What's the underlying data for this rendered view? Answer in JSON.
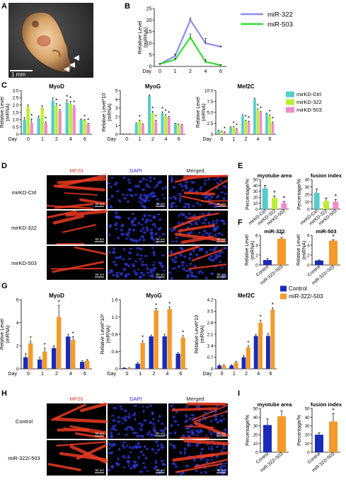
{
  "panel_letters": [
    "A",
    "B",
    "C",
    "D",
    "E",
    "F",
    "G",
    "H",
    "I"
  ],
  "embryo": {
    "scale_label": "1 mm"
  },
  "micro_top": {
    "columns": [
      "MF20",
      "DAPI",
      "Merged"
    ],
    "rows": [
      "mirKD-Ctrl",
      "mirKD-322",
      "mirKD-503"
    ],
    "scale_label": "50 um"
  },
  "micro_bottom": {
    "columns": [
      "MF20",
      "DAPI",
      "Merged"
    ],
    "rows": [
      "Control",
      "miR-322/-503"
    ],
    "scale_label": "50 um"
  },
  "colors": {
    "mir322_line": "#8c8cf0",
    "mir503_line": "#33dd33",
    "ctrl": "#55cccc",
    "kd322": "#bbee33",
    "kd503": "#f08cc8",
    "control": "#1a2bb8",
    "mir_over": "#f39a2a",
    "mf20": "#e23a28",
    "dapi": "#2b2bdd"
  },
  "legend_C": [
    "mirKD-Ctrl",
    "mirKD-322",
    "mirKD-503"
  ],
  "legend_G": [
    "Control",
    "miR-322/-503"
  ],
  "chart_data": [
    {
      "id": "B",
      "type": "line",
      "x": [
        0,
        1,
        2,
        4,
        6
      ],
      "xlabel": "Day",
      "ylabel": "Relative Level\n(miRNA)",
      "ylim": [
        0,
        25
      ],
      "yticks": [
        0,
        5,
        10,
        15,
        20,
        25
      ],
      "series": [
        {
          "name": "miR-322",
          "values": [
            1.0,
            4.5,
            20.0,
            10.0,
            8.5
          ],
          "err": [
            0.3,
            0.8,
            0.8,
            2.0,
            0.3
          ]
        },
        {
          "name": "miR-503",
          "values": [
            1.0,
            3.0,
            12.5,
            2.0,
            0.5
          ],
          "err": [
            0.2,
            0.5,
            1.5,
            1.0,
            0.2
          ]
        }
      ]
    },
    {
      "id": "C1",
      "type": "bar",
      "title": "MyoD",
      "categories": [
        "0",
        "1",
        "2",
        "4",
        "6"
      ],
      "xlabel": "Day",
      "ylabel": "Relative Level\n(mRNA)",
      "ylim": [
        0,
        3.0
      ],
      "yticks": [
        "0",
        "0.5",
        "1.0",
        "1.5",
        "2.0",
        "2.5",
        "3.0"
      ],
      "series": [
        {
          "name": "mirKD-Ctrl",
          "values": [
            1.0,
            1.1,
            2.3,
            2.2,
            1.0
          ],
          "err": [
            0.15,
            0.15,
            0.2,
            0.15,
            0.05
          ]
        },
        {
          "name": "mirKD-322",
          "values": [
            1.85,
            1.8,
            1.95,
            2.1,
            0.95
          ],
          "err": [
            0.15,
            0.15,
            0.15,
            0.15,
            0.05
          ]
        },
        {
          "name": "mirKD-503",
          "values": [
            0.8,
            0.75,
            1.6,
            1.85,
            0.7
          ],
          "err": [
            0.25,
            0.1,
            0.1,
            0.1,
            0.05
          ]
        }
      ],
      "stars": [
        {
          "cat": 0,
          "bar": 2
        },
        {
          "cat": 1,
          "bar": 2
        },
        {
          "cat": 2,
          "bar": 1
        },
        {
          "cat": 2,
          "bar": 2
        },
        {
          "cat": 3,
          "bar": 0
        },
        {
          "cat": 3,
          "bar": 1
        },
        {
          "cat": 3,
          "bar": 2
        },
        {
          "cat": 4,
          "bar": 1
        },
        {
          "cat": 4,
          "bar": 2
        }
      ]
    },
    {
      "id": "C2",
      "type": "bar",
      "title": "MyoG",
      "categories": [
        "0",
        "1",
        "2",
        "4",
        "6"
      ],
      "xlabel": "Day",
      "ylabel": "Relative Level*10\n(mRNA)",
      "ylim": [
        0,
        5
      ],
      "yticks": [
        "0",
        "1",
        "2",
        "3",
        "4",
        "5"
      ],
      "series": [
        {
          "name": "mirKD-Ctrl",
          "values": [
            0.05,
            1.2,
            4.4,
            2.4,
            1.2
          ],
          "err": [
            0.02,
            0.1,
            0.1,
            0.15,
            0.05
          ]
        },
        {
          "name": "mirKD-322",
          "values": [
            0.05,
            1.5,
            2.4,
            2.1,
            1.1
          ],
          "err": [
            0.02,
            0.1,
            0.2,
            0.15,
            0.05
          ]
        },
        {
          "name": "mirKD-503",
          "values": [
            0.05,
            1.1,
            1.5,
            1.95,
            1.05
          ],
          "err": [
            0.02,
            0.1,
            0.1,
            0.1,
            0.05
          ]
        }
      ],
      "stars": [
        {
          "cat": 1,
          "bar": 1
        },
        {
          "cat": 2,
          "bar": 1
        },
        {
          "cat": 2,
          "bar": 2
        },
        {
          "cat": 3,
          "bar": 0
        },
        {
          "cat": 3,
          "bar": 1
        },
        {
          "cat": 3,
          "bar": 2
        }
      ]
    },
    {
      "id": "C3",
      "type": "bar",
      "title": "Mef2C",
      "categories": [
        "0",
        "1",
        "2",
        "4",
        "6"
      ],
      "xlabel": "Day",
      "ylabel": "Relative Level\n(mRNA)",
      "ylim": [
        0,
        10
      ],
      "yticks": [
        "0",
        "2.5",
        "5.0",
        "7.5",
        "10.0"
      ],
      "series": [
        {
          "name": "mirKD-Ctrl",
          "values": [
            0.8,
            1.5,
            4.2,
            8.0,
            4.7
          ],
          "err": [
            0.1,
            0.2,
            0.2,
            0.2,
            0.1
          ]
        },
        {
          "name": "mirKD-322",
          "values": [
            0.6,
            1.6,
            3.0,
            5.5,
            4.2
          ],
          "err": [
            0.1,
            0.2,
            0.2,
            0.3,
            0.2
          ]
        },
        {
          "name": "mirKD-503",
          "values": [
            0.5,
            1.2,
            2.8,
            5.0,
            2.6
          ],
          "err": [
            0.1,
            0.1,
            0.2,
            0.2,
            0.2
          ]
        }
      ],
      "stars": [
        {
          "cat": 0,
          "bar": 2
        },
        {
          "cat": 1,
          "bar": 1
        },
        {
          "cat": 1,
          "bar": 2
        },
        {
          "cat": 2,
          "bar": 1
        },
        {
          "cat": 2,
          "bar": 2
        },
        {
          "cat": 3,
          "bar": 1
        },
        {
          "cat": 3,
          "bar": 2
        },
        {
          "cat": 4,
          "bar": 1
        },
        {
          "cat": 4,
          "bar": 2
        }
      ]
    },
    {
      "id": "E1",
      "type": "bar",
      "title": "myotube area",
      "categories": [
        "mirKD-Ctrl",
        "mirKD-322",
        "mirKD-503"
      ],
      "ylabel": "Percentage/%",
      "ylim": [
        0,
        50
      ],
      "yticks": [
        "0",
        "10",
        "20",
        "30",
        "40",
        "50"
      ],
      "values": [
        35,
        19,
        10
      ],
      "err": [
        5,
        3,
        3
      ],
      "stars": [
        1,
        2
      ]
    },
    {
      "id": "E2",
      "type": "bar",
      "title": "fusion index",
      "categories": [
        "mirKD-Ctrl",
        "mirKD-322",
        "mirKD-503"
      ],
      "ylabel": "Percentage/%",
      "ylim": [
        0,
        40
      ],
      "yticks": [
        "0",
        "10",
        "20",
        "30",
        "40"
      ],
      "values": [
        22,
        11,
        10
      ],
      "err": [
        5,
        4,
        3
      ],
      "stars": [
        2
      ]
    },
    {
      "id": "F1",
      "type": "bar",
      "title": "miR-322",
      "categories": [
        "Control",
        "miR-322/-503"
      ],
      "ylabel": "Relative Level\n(miRNA)",
      "ylim": [
        0,
        6
      ],
      "yticks": [
        "0",
        "2",
        "4",
        "6"
      ],
      "values": [
        1.0,
        5.3
      ],
      "err": [
        0.3,
        0.2
      ],
      "stars": [
        1
      ]
    },
    {
      "id": "F2",
      "type": "bar",
      "title": "miR-503",
      "categories": [
        "Control",
        "miR-322/-503"
      ],
      "ylabel": "Relative Level\n(miRNA)",
      "ylim": [
        0,
        6
      ],
      "yticks": [
        "0",
        "2",
        "4",
        "6"
      ],
      "values": [
        0.9,
        4.9
      ],
      "err": [
        0.1,
        0.2
      ],
      "stars": [
        1
      ]
    },
    {
      "id": "G1",
      "type": "bar",
      "title": "MyoD",
      "categories": [
        "0",
        "1",
        "2",
        "4",
        "6"
      ],
      "xlabel": "Day",
      "ylabel": "Relative Level\n(mRNA)",
      "ylim": [
        0,
        6
      ],
      "yticks": [
        "0",
        "2",
        "4",
        "6"
      ],
      "series": [
        {
          "name": "Control",
          "values": [
            1.0,
            0.8,
            1.8,
            2.8,
            0.6
          ],
          "err": [
            0.3,
            0.2,
            0.2,
            0.2,
            0.1
          ]
        },
        {
          "name": "miR-322/-503",
          "values": [
            2.2,
            1.5,
            4.5,
            2.5,
            0.7
          ],
          "err": [
            0.2,
            0.3,
            1.0,
            0.3,
            0.1
          ]
        }
      ],
      "stars": [
        {
          "cat": 0,
          "bar": 1
        },
        {
          "cat": 1,
          "bar": 1
        },
        {
          "cat": 2,
          "bar": 1
        },
        {
          "cat": 3,
          "bar": 1
        }
      ]
    },
    {
      "id": "G2",
      "type": "bar",
      "title": "MyoG",
      "categories": [
        "0",
        "1",
        "2",
        "4",
        "6"
      ],
      "xlabel": "Day",
      "ylabel": "Relative Level*10²\n(mRNA)",
      "ylim": [
        0,
        1.6
      ],
      "yticks": [
        "0",
        "0.4",
        "0.8",
        "1.2",
        "1.6"
      ],
      "series": [
        {
          "name": "Control",
          "values": [
            0.02,
            0.12,
            0.75,
            0.75,
            0.35
          ],
          "err": [
            0.01,
            0.03,
            0.03,
            0.05,
            0.03
          ]
        },
        {
          "name": "miR-322/-503",
          "values": [
            0.02,
            0.6,
            1.35,
            1.38,
            0.72
          ],
          "err": [
            0.01,
            0.05,
            0.05,
            0.05,
            0.05
          ]
        }
      ],
      "stars": [
        {
          "cat": 1,
          "bar": 1
        },
        {
          "cat": 2,
          "bar": 1
        },
        {
          "cat": 3,
          "bar": 1
        },
        {
          "cat": 4,
          "bar": 1
        }
      ]
    },
    {
      "id": "G3",
      "type": "bar",
      "title": "Mef2C",
      "categories": [
        "0",
        "1",
        "2",
        "4",
        "6"
      ],
      "xlabel": "Day",
      "ylabel": "Relative Level*10\n(mRNA)",
      "ylim": [
        0,
        4.2
      ],
      "yticks": [
        "0",
        "0.7",
        "1.4",
        "2.1",
        "2.8",
        "3.5",
        "4.2"
      ],
      "series": [
        {
          "name": "Control",
          "values": [
            0.2,
            0.2,
            0.7,
            2.0,
            2.0
          ],
          "err": [
            0.05,
            0.05,
            0.1,
            0.1,
            0.15
          ]
        },
        {
          "name": "miR-322/-503",
          "values": [
            0.2,
            0.4,
            1.3,
            2.8,
            3.6
          ],
          "err": [
            0.05,
            0.05,
            0.1,
            0.15,
            0.1
          ]
        }
      ],
      "stars": [
        {
          "cat": 2,
          "bar": 1
        },
        {
          "cat": 3,
          "bar": 1
        },
        {
          "cat": 4,
          "bar": 1
        }
      ]
    },
    {
      "id": "I1",
      "type": "bar",
      "title": "myotube area",
      "categories": [
        "Control",
        "miR-322/-503"
      ],
      "ylabel": "Percentage/%",
      "ylim": [
        0,
        50
      ],
      "yticks": [
        "0",
        "10",
        "20",
        "30",
        "40",
        "50"
      ],
      "values": [
        31,
        41
      ],
      "err": [
        7,
        6
      ],
      "stars": []
    },
    {
      "id": "I2",
      "type": "bar",
      "title": "fusion index",
      "categories": [
        "Control",
        "miR-322/-503"
      ],
      "ylabel": "Percentage/%",
      "ylim": [
        0,
        50
      ],
      "yticks": [
        "0",
        "10",
        "20",
        "30",
        "40",
        "50"
      ],
      "values": [
        20,
        35
      ],
      "err": [
        2,
        9
      ],
      "stars": [
        1
      ]
    }
  ]
}
